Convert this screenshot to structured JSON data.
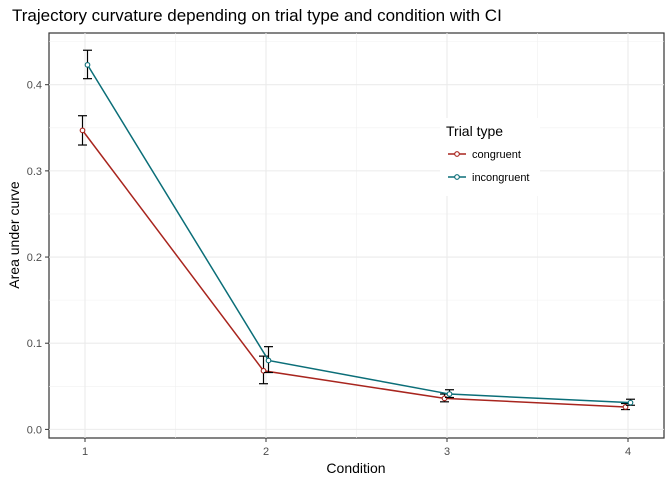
{
  "chart_data": {
    "type": "line",
    "title": "Trajectory curvature depending on trial type and condition with CI",
    "xlabel": "Condition",
    "ylabel": "Area under curve",
    "categories": [
      "1",
      "2",
      "3",
      "4"
    ],
    "ylim": [
      -0.01,
      0.46
    ],
    "yticks": [
      0.0,
      0.1,
      0.2,
      0.3,
      0.4
    ],
    "ytick_labels": [
      "0.0",
      "0.1",
      "0.2",
      "0.3",
      "0.4"
    ],
    "grid": true,
    "legend": {
      "title": "Trial type",
      "position": "right"
    },
    "series": [
      {
        "name": "congruent",
        "color": "#a8251e",
        "values": [
          0.347,
          0.068,
          0.036,
          0.026
        ],
        "ci_low": [
          0.33,
          0.053,
          0.032,
          0.023
        ],
        "ci_high": [
          0.364,
          0.085,
          0.041,
          0.03
        ]
      },
      {
        "name": "incongruent",
        "color": "#0b6e78",
        "values": [
          0.423,
          0.08,
          0.041,
          0.031
        ],
        "ci_low": [
          0.407,
          0.066,
          0.037,
          0.028
        ],
        "ci_high": [
          0.44,
          0.096,
          0.046,
          0.035
        ]
      }
    ]
  }
}
